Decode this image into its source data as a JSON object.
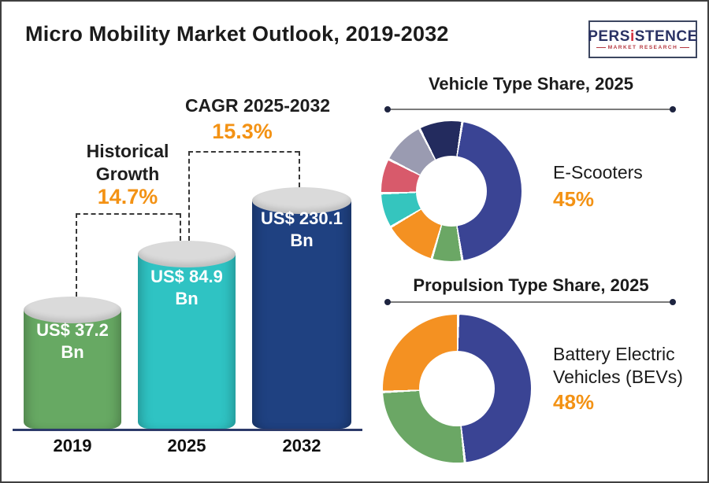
{
  "page": {
    "title": "Micro Mobility Market Outlook, 2019-2032"
  },
  "logo": {
    "brand_part1": "PERS",
    "brand_accent": "i",
    "brand_part2": "STENCE",
    "tagline": "MARKET RESEARCH"
  },
  "colors": {
    "accent_orange": "#f39214",
    "axis_line": "#2c3a6a",
    "cylinder_top": "#dadada",
    "bar_2019": "#67a963",
    "bar_2025": "#2fc3c3",
    "bar_2032": "#1f4181",
    "donut_indigo": "#3a4494",
    "donut_green": "#6ba765",
    "donut_orange": "#f49122",
    "donut_teal": "#35c5be",
    "donut_red": "#d85a6b",
    "donut_gray": "#9a9bb1",
    "donut_navy": "#232b5e"
  },
  "chart_data": [
    {
      "type": "bar",
      "subtype": "cylinder-3d",
      "title": "Micro Mobility Market Outlook, 2019-2032",
      "categories": [
        "2019",
        "2025",
        "2032"
      ],
      "values": [
        37.2,
        84.9,
        230.1
      ],
      "unit": "US$ Bn",
      "bars": [
        {
          "year": "2019",
          "label_line1": "US$ 37.2",
          "label_line2": "Bn",
          "color": "#67a963"
        },
        {
          "year": "2025",
          "label_line1": "US$ 84.9",
          "label_line2": "Bn",
          "color": "#2fc3c3"
        },
        {
          "year": "2032",
          "label_line1": "US$ 230.1",
          "label_line2": "Bn",
          "color": "#1f4181"
        }
      ],
      "annotations": {
        "historical": {
          "line1": "Historical",
          "line2": "Growth",
          "value": "14.7%",
          "span": [
            "2019",
            "2025"
          ]
        },
        "cagr": {
          "label": "CAGR 2025-2032",
          "value": "15.3%",
          "span": [
            "2025",
            "2032"
          ]
        }
      }
    },
    {
      "type": "pie",
      "subtype": "donut",
      "title": "Vehicle Type Share, 2025",
      "highlight": {
        "label": "E-Scooters",
        "value_label": "45%"
      },
      "start_angle_deg": 8,
      "legend_position": "none",
      "slices": [
        {
          "label": "E-Scooters",
          "value": 45,
          "color": "#3a4494"
        },
        {
          "value": 7,
          "color": "#6ba765"
        },
        {
          "value": 12,
          "color": "#f49122"
        },
        {
          "value": 8,
          "color": "#35c5be"
        },
        {
          "value": 8,
          "color": "#d85a6b"
        },
        {
          "value": 10,
          "color": "#9a9bb1"
        },
        {
          "value": 10,
          "color": "#232b5e"
        }
      ]
    },
    {
      "type": "pie",
      "subtype": "donut",
      "title": "Propulsion Type Share, 2025",
      "highlight": {
        "label": "Battery Electric Vehicles (BEVs)",
        "label_line1": "Battery Electric",
        "label_line2": "Vehicles (BEVs)",
        "value_label": "48%"
      },
      "start_angle_deg": 0,
      "legend_position": "none",
      "slices": [
        {
          "label": "Battery Electric Vehicles (BEVs)",
          "value": 48,
          "color": "#3a4494"
        },
        {
          "value": 26,
          "color": "#6ba765"
        },
        {
          "value": 26,
          "color": "#f49122"
        }
      ]
    }
  ]
}
